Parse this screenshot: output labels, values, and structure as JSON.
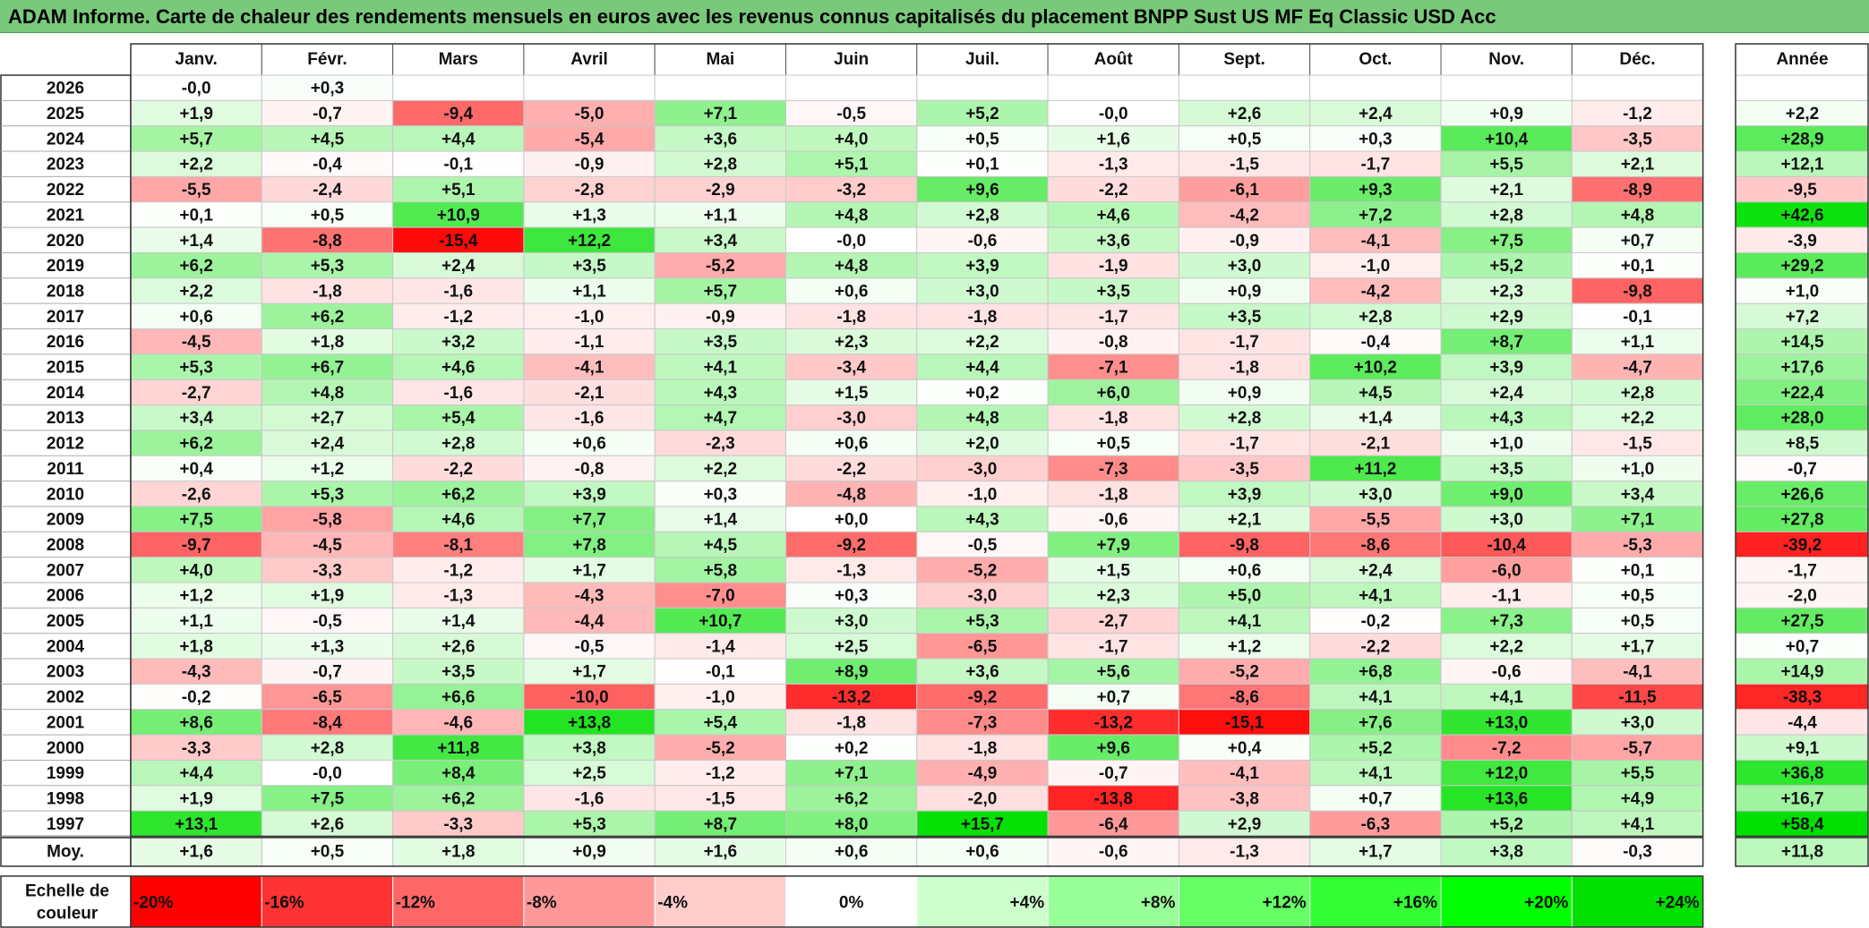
{
  "title": "ADAM Informe. Carte de chaleur des rendements mensuels en euros avec les revenus connus capitalisés du placement BNPP Sust US MF Eq Classic USD Acc",
  "chart_data": {
    "type": "heatmap",
    "title": "ADAM Informe. Carte de chaleur des rendements mensuels en euros avec les revenus connus capitalisés du placement BNPP Sust US MF Eq Classic USD Acc",
    "columns": [
      "Janv.",
      "Févr.",
      "Mars",
      "Avril",
      "Mai",
      "Juin",
      "Juil.",
      "Août",
      "Sept.",
      "Oct.",
      "Nov.",
      "Déc."
    ],
    "year_column": "Année",
    "rows": [
      {
        "label": "2026",
        "values": [
          "-0,0",
          "+0,3",
          "",
          "",
          "",
          "",
          "",
          "",
          "",
          "",
          "",
          ""
        ],
        "year": ""
      },
      {
        "label": "2025",
        "values": [
          "+1,9",
          "-0,7",
          "-9,4",
          "-5,0",
          "+7,1",
          "-0,5",
          "+5,2",
          "-0,0",
          "+2,6",
          "+2,4",
          "+0,9",
          "-1,2"
        ],
        "year": "+2,2"
      },
      {
        "label": "2024",
        "values": [
          "+5,7",
          "+4,5",
          "+4,4",
          "-5,4",
          "+3,6",
          "+4,0",
          "+0,5",
          "+1,6",
          "+0,5",
          "+0,3",
          "+10,4",
          "-3,5"
        ],
        "year": "+28,9"
      },
      {
        "label": "2023",
        "values": [
          "+2,2",
          "-0,4",
          "-0,1",
          "-0,9",
          "+2,8",
          "+5,1",
          "+0,1",
          "-1,3",
          "-1,5",
          "-1,7",
          "+5,5",
          "+2,1"
        ],
        "year": "+12,1"
      },
      {
        "label": "2022",
        "values": [
          "-5,5",
          "-2,4",
          "+5,1",
          "-2,8",
          "-2,9",
          "-3,2",
          "+9,6",
          "-2,2",
          "-6,1",
          "+9,3",
          "+2,1",
          "-8,9"
        ],
        "year": "-9,5"
      },
      {
        "label": "2021",
        "values": [
          "+0,1",
          "+0,5",
          "+10,9",
          "+1,3",
          "+1,1",
          "+4,8",
          "+2,8",
          "+4,6",
          "-4,2",
          "+7,2",
          "+2,8",
          "+4,8"
        ],
        "year": "+42,6"
      },
      {
        "label": "2020",
        "values": [
          "+1,4",
          "-8,8",
          "-15,4",
          "+12,2",
          "+3,4",
          "-0,0",
          "-0,6",
          "+3,6",
          "-0,9",
          "-4,1",
          "+7,5",
          "+0,7"
        ],
        "year": "-3,9"
      },
      {
        "label": "2019",
        "values": [
          "+6,2",
          "+5,3",
          "+2,4",
          "+3,5",
          "-5,2",
          "+4,8",
          "+3,9",
          "-1,9",
          "+3,0",
          "-1,0",
          "+5,2",
          "+0,1"
        ],
        "year": "+29,2"
      },
      {
        "label": "2018",
        "values": [
          "+2,2",
          "-1,8",
          "-1,6",
          "+1,1",
          "+5,7",
          "+0,6",
          "+3,0",
          "+3,5",
          "+0,9",
          "-4,2",
          "+2,3",
          "-9,8"
        ],
        "year": "+1,0"
      },
      {
        "label": "2017",
        "values": [
          "+0,6",
          "+6,2",
          "-1,2",
          "-1,0",
          "-0,9",
          "-1,8",
          "-1,8",
          "-1,7",
          "+3,5",
          "+2,8",
          "+2,9",
          "-0,1"
        ],
        "year": "+7,2"
      },
      {
        "label": "2016",
        "values": [
          "-4,5",
          "+1,8",
          "+3,2",
          "-1,1",
          "+3,5",
          "+2,3",
          "+2,2",
          "-0,8",
          "-1,7",
          "-0,4",
          "+8,7",
          "+1,1"
        ],
        "year": "+14,5"
      },
      {
        "label": "2015",
        "values": [
          "+5,3",
          "+6,7",
          "+4,6",
          "-4,1",
          "+4,1",
          "-3,4",
          "+4,4",
          "-7,1",
          "-1,8",
          "+10,2",
          "+3,9",
          "-4,7"
        ],
        "year": "+17,6"
      },
      {
        "label": "2014",
        "values": [
          "-2,7",
          "+4,8",
          "-1,6",
          "-2,1",
          "+4,3",
          "+1,5",
          "+0,2",
          "+6,0",
          "+0,9",
          "+4,5",
          "+2,4",
          "+2,8"
        ],
        "year": "+22,4"
      },
      {
        "label": "2013",
        "values": [
          "+3,4",
          "+2,7",
          "+5,4",
          "-1,6",
          "+4,7",
          "-3,0",
          "+4,8",
          "-1,8",
          "+2,8",
          "+1,4",
          "+4,3",
          "+2,2"
        ],
        "year": "+28,0"
      },
      {
        "label": "2012",
        "values": [
          "+6,2",
          "+2,4",
          "+2,8",
          "+0,6",
          "-2,3",
          "+0,6",
          "+2,0",
          "+0,5",
          "-1,7",
          "-2,1",
          "+1,0",
          "-1,5"
        ],
        "year": "+8,5"
      },
      {
        "label": "2011",
        "values": [
          "+0,4",
          "+1,2",
          "-2,2",
          "-0,8",
          "+2,2",
          "-2,2",
          "-3,0",
          "-7,3",
          "-3,5",
          "+11,2",
          "+3,5",
          "+1,0"
        ],
        "year": "-0,7"
      },
      {
        "label": "2010",
        "values": [
          "-2,6",
          "+5,3",
          "+6,2",
          "+3,9",
          "+0,3",
          "-4,8",
          "-1,0",
          "-1,8",
          "+3,9",
          "+3,0",
          "+9,0",
          "+3,4"
        ],
        "year": "+26,6"
      },
      {
        "label": "2009",
        "values": [
          "+7,5",
          "-5,8",
          "+4,6",
          "+7,7",
          "+1,4",
          "+0,0",
          "+4,3",
          "-0,6",
          "+2,1",
          "-5,5",
          "+3,0",
          "+7,1"
        ],
        "year": "+27,8"
      },
      {
        "label": "2008",
        "values": [
          "-9,7",
          "-4,5",
          "-8,1",
          "+7,8",
          "+4,5",
          "-9,2",
          "-0,5",
          "+7,9",
          "-9,8",
          "-8,6",
          "-10,4",
          "-5,3"
        ],
        "year": "-39,2"
      },
      {
        "label": "2007",
        "values": [
          "+4,0",
          "-3,3",
          "-1,2",
          "+1,7",
          "+5,8",
          "-1,3",
          "-5,2",
          "+1,5",
          "+0,6",
          "+2,4",
          "-6,0",
          "+0,1"
        ],
        "year": "-1,7"
      },
      {
        "label": "2006",
        "values": [
          "+1,2",
          "+1,9",
          "-1,3",
          "-4,3",
          "-7,0",
          "+0,3",
          "-3,0",
          "+2,3",
          "+5,0",
          "+4,1",
          "-1,1",
          "+0,5"
        ],
        "year": "-2,0"
      },
      {
        "label": "2005",
        "values": [
          "+1,1",
          "-0,5",
          "+1,4",
          "-4,4",
          "+10,7",
          "+3,0",
          "+5,3",
          "-2,7",
          "+4,1",
          "-0,2",
          "+7,3",
          "+0,5"
        ],
        "year": "+27,5"
      },
      {
        "label": "2004",
        "values": [
          "+1,8",
          "+1,3",
          "+2,6",
          "-0,5",
          "-1,4",
          "+2,5",
          "-6,5",
          "-1,7",
          "+1,2",
          "-2,2",
          "+2,2",
          "+1,7"
        ],
        "year": "+0,7"
      },
      {
        "label": "2003",
        "values": [
          "-4,3",
          "-0,7",
          "+3,5",
          "+1,7",
          "-0,1",
          "+8,9",
          "+3,6",
          "+5,6",
          "-5,2",
          "+6,8",
          "-0,6",
          "-4,1"
        ],
        "year": "+14,9"
      },
      {
        "label": "2002",
        "values": [
          "-0,2",
          "-6,5",
          "+6,6",
          "-10,0",
          "-1,0",
          "-13,2",
          "-9,2",
          "+0,7",
          "-8,6",
          "+4,1",
          "+4,1",
          "-11,5"
        ],
        "year": "-38,3"
      },
      {
        "label": "2001",
        "values": [
          "+8,6",
          "-8,4",
          "-4,6",
          "+13,8",
          "+5,4",
          "-1,8",
          "-7,3",
          "-13,2",
          "-15,1",
          "+7,6",
          "+13,0",
          "+3,0"
        ],
        "year": "-4,4"
      },
      {
        "label": "2000",
        "values": [
          "-3,3",
          "+2,8",
          "+11,8",
          "+3,8",
          "-5,2",
          "+0,2",
          "-1,8",
          "+9,6",
          "+0,4",
          "+5,2",
          "-7,2",
          "-5,7"
        ],
        "year": "+9,1"
      },
      {
        "label": "1999",
        "values": [
          "+4,4",
          "-0,0",
          "+8,4",
          "+2,5",
          "-1,2",
          "+7,1",
          "-4,9",
          "-0,7",
          "-4,1",
          "+4,1",
          "+12,0",
          "+5,5"
        ],
        "year": "+36,8"
      },
      {
        "label": "1998",
        "values": [
          "+1,9",
          "+7,5",
          "+6,2",
          "-1,6",
          "-1,5",
          "+6,2",
          "-2,0",
          "-13,8",
          "-3,8",
          "+0,7",
          "+13,6",
          "+4,9"
        ],
        "year": "+16,7"
      },
      {
        "label": "1997",
        "values": [
          "+13,1",
          "+2,6",
          "-3,3",
          "+5,3",
          "+8,7",
          "+8,0",
          "+15,7",
          "-6,4",
          "+2,9",
          "-6,3",
          "+5,2",
          "+4,1"
        ],
        "year": "+58,4"
      }
    ],
    "average": {
      "label": "Moy.",
      "values": [
        "+1,6",
        "+0,5",
        "+1,8",
        "+0,9",
        "+1,6",
        "+0,6",
        "+0,6",
        "-0,6",
        "-1,3",
        "+1,7",
        "+3,8",
        "-0,3"
      ],
      "year": "+11,8"
    },
    "scale": {
      "label_lines": [
        "Echelle de",
        "couleur"
      ],
      "stops": [
        {
          "label": "-20%",
          "value": -20,
          "color": "#ff0000"
        },
        {
          "label": "-16%",
          "value": -16,
          "color": "#ff3333"
        },
        {
          "label": "-12%",
          "value": -12,
          "color": "#ff6666"
        },
        {
          "label": "-8%",
          "value": -8,
          "color": "#ff9999"
        },
        {
          "label": "-4%",
          "value": -4,
          "color": "#ffcccc"
        },
        {
          "label": "0%",
          "value": 0,
          "color": "#ffffff"
        },
        {
          "label": "+4%",
          "value": 4,
          "color": "#ccffcc"
        },
        {
          "label": "+8%",
          "value": 8,
          "color": "#99ff99"
        },
        {
          "label": "+12%",
          "value": 12,
          "color": "#66ff66"
        },
        {
          "label": "+16%",
          "value": 16,
          "color": "#33ff33"
        },
        {
          "label": "+20%",
          "value": 20,
          "color": "#00ff00"
        },
        {
          "label": "+24%",
          "value": 24,
          "color": "#00e000"
        }
      ]
    },
    "colors": {
      "title_bar": "#79c97b",
      "negative_max": "#ff0000",
      "positive_max": "#00e000",
      "neutral": "#ffffff"
    }
  }
}
